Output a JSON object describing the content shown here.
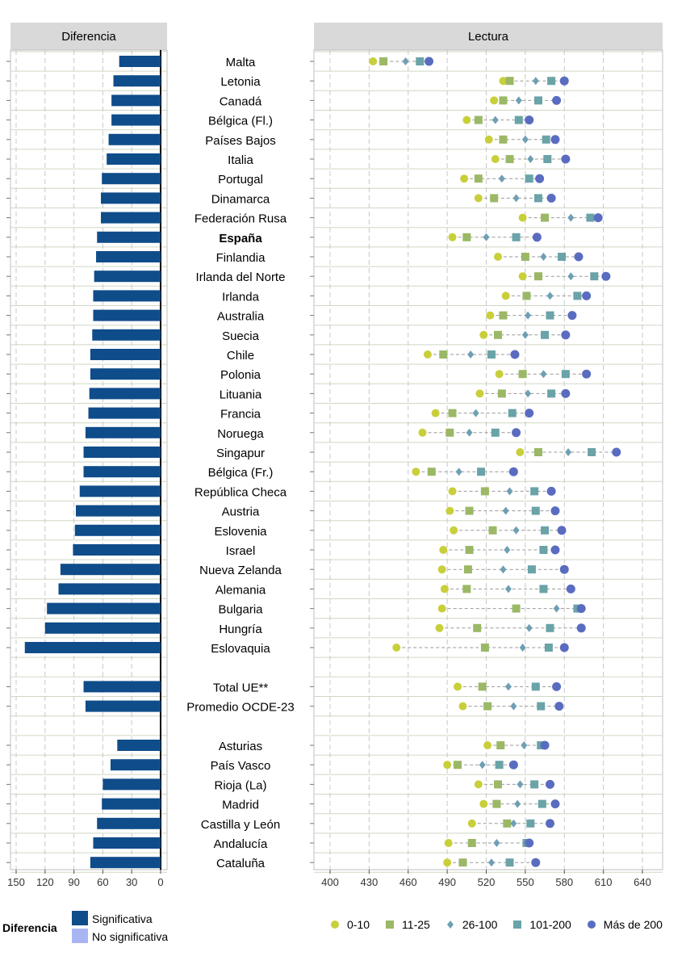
{
  "panels": {
    "left_title": "Diferencia",
    "right_title": "Lectura"
  },
  "colors": {
    "bar_significant": "#0f4c8a",
    "bar_not_significant": "#a9b4f2",
    "g1": "#c8cf3a",
    "g2": "#9bb866",
    "g3": "#6f9fb4",
    "g4": "#6aa3a8",
    "g5": "#5a6cc0"
  },
  "legend_left": {
    "title": "Diferencia",
    "significant": "Significativa",
    "not_significant": "No significativa"
  },
  "legend_right": [
    {
      "label": "0-10",
      "shape": "circle",
      "color": "#c8cf3a"
    },
    {
      "label": "11-25",
      "shape": "square",
      "color": "#9bb866"
    },
    {
      "label": "26-100",
      "shape": "diamond",
      "color": "#6f9fb4"
    },
    {
      "label": "101-200",
      "shape": "square",
      "color": "#6aa3a8"
    },
    {
      "label": "Más de 200",
      "shape": "circle",
      "color": "#5a6cc0"
    }
  ],
  "chart_data": [
    {
      "type": "bar",
      "orientation": "horizontal",
      "title": "Diferencia",
      "xlim": [
        157,
        0
      ],
      "xticks": [
        "150",
        "120",
        "90",
        "60",
        "30",
        "0"
      ],
      "grid": true,
      "categories": [
        "Malta",
        "Letonia",
        "Canadá",
        "Bélgica (Fl.)",
        "Países Bajos",
        "Italia",
        "Portugal",
        "Dinamarca",
        "Federación Rusa",
        "España",
        "Finlandia",
        "Irlanda del Norte",
        "Irlanda",
        "Australia",
        "Suecia",
        "Chile",
        "Polonia",
        "Lituania",
        "Francia",
        "Noruega",
        "Singapur",
        "Bélgica (Fr.)",
        "República Checa",
        "Austria",
        "Eslovenia",
        "Israel",
        "Nueva Zelanda",
        "Alemania",
        "Bulgaria",
        "Hungría",
        "Eslovaquia",
        "Total UE**",
        "Promedio OCDE-23",
        "Asturias",
        "País Vasco",
        "Rioja (La)",
        "Madrid",
        "Castilla y León",
        "Andalucía",
        "Cataluña"
      ],
      "values": [
        43,
        49,
        51,
        51,
        54,
        56,
        61,
        62,
        62,
        66,
        67,
        69,
        70,
        70,
        71,
        73,
        73,
        74,
        75,
        78,
        80,
        80,
        84,
        88,
        89,
        91,
        104,
        106,
        118,
        120,
        141,
        80,
        78,
        45,
        52,
        60,
        61,
        66,
        70,
        73
      ],
      "significant": [
        true,
        true,
        true,
        true,
        true,
        true,
        true,
        true,
        true,
        true,
        true,
        true,
        true,
        true,
        true,
        true,
        true,
        true,
        true,
        true,
        true,
        true,
        true,
        true,
        true,
        true,
        true,
        true,
        true,
        true,
        true,
        true,
        true,
        true,
        true,
        true,
        true,
        true,
        true,
        true
      ]
    },
    {
      "type": "scatter",
      "title": "Lectura",
      "xlim": [
        393,
        645
      ],
      "xticks": [
        "400",
        "430",
        "460",
        "490",
        "520",
        "550",
        "580",
        "610",
        "640"
      ],
      "grid": true,
      "series_names": [
        "0-10",
        "11-25",
        "26-100",
        "101-200",
        "Más de 200"
      ],
      "rows": [
        {
          "name": "Malta",
          "bold": false,
          "values": [
            433,
            441,
            458,
            469,
            476
          ]
        },
        {
          "name": "Letonia",
          "bold": false,
          "values": [
            533,
            538,
            558,
            570,
            580
          ]
        },
        {
          "name": "Canadá",
          "bold": false,
          "values": [
            526,
            533,
            545,
            560,
            574
          ]
        },
        {
          "name": "Bélgica (Fl.)",
          "bold": false,
          "values": [
            505,
            514,
            527,
            545,
            553
          ]
        },
        {
          "name": "Países Bajos",
          "bold": false,
          "values": [
            522,
            533,
            550,
            566,
            573
          ]
        },
        {
          "name": "Italia",
          "bold": false,
          "values": [
            527,
            538,
            554,
            567,
            581
          ]
        },
        {
          "name": "Portugal",
          "bold": false,
          "values": [
            503,
            514,
            532,
            553,
            561
          ]
        },
        {
          "name": "Dinamarca",
          "bold": false,
          "values": [
            514,
            526,
            543,
            560,
            570
          ]
        },
        {
          "name": "Federación Rusa",
          "bold": false,
          "values": [
            548,
            565,
            585,
            600,
            606
          ]
        },
        {
          "name": "España",
          "bold": true,
          "values": [
            494,
            505,
            520,
            543,
            559
          ]
        },
        {
          "name": "Finlandia",
          "bold": false,
          "values": [
            529,
            550,
            564,
            578,
            591
          ]
        },
        {
          "name": "Irlanda del Norte",
          "bold": false,
          "values": [
            548,
            560,
            585,
            603,
            612
          ]
        },
        {
          "name": "Irlanda",
          "bold": false,
          "values": [
            535,
            551,
            569,
            590,
            597
          ]
        },
        {
          "name": "Australia",
          "bold": false,
          "values": [
            523,
            533,
            552,
            569,
            586
          ]
        },
        {
          "name": "Suecia",
          "bold": false,
          "values": [
            518,
            529,
            550,
            565,
            581
          ]
        },
        {
          "name": "Chile",
          "bold": false,
          "values": [
            475,
            487,
            508,
            524,
            542
          ]
        },
        {
          "name": "Polonia",
          "bold": false,
          "values": [
            530,
            548,
            564,
            581,
            597
          ]
        },
        {
          "name": "Lituania",
          "bold": false,
          "values": [
            515,
            532,
            552,
            570,
            581
          ]
        },
        {
          "name": "Francia",
          "bold": false,
          "values": [
            481,
            494,
            512,
            540,
            553
          ]
        },
        {
          "name": "Noruega",
          "bold": false,
          "values": [
            471,
            492,
            507,
            527,
            543
          ]
        },
        {
          "name": "Singapur",
          "bold": false,
          "values": [
            546,
            560,
            583,
            601,
            620
          ]
        },
        {
          "name": "Bélgica (Fr.)",
          "bold": false,
          "values": [
            466,
            478,
            499,
            516,
            541
          ]
        },
        {
          "name": "República Checa",
          "bold": false,
          "values": [
            494,
            519,
            538,
            557,
            570
          ]
        },
        {
          "name": "Austria",
          "bold": false,
          "values": [
            492,
            507,
            535,
            558,
            573
          ]
        },
        {
          "name": "Eslovenia",
          "bold": false,
          "values": [
            495,
            525,
            543,
            565,
            578
          ]
        },
        {
          "name": "Israel",
          "bold": false,
          "values": [
            487,
            507,
            536,
            564,
            573
          ]
        },
        {
          "name": "Nueva Zelanda",
          "bold": false,
          "values": [
            486,
            506,
            533,
            555,
            580
          ]
        },
        {
          "name": "Alemania",
          "bold": false,
          "values": [
            488,
            505,
            537,
            564,
            585
          ]
        },
        {
          "name": "Bulgaria",
          "bold": false,
          "values": [
            486,
            543,
            574,
            590,
            593
          ]
        },
        {
          "name": "Hungría",
          "bold": false,
          "values": [
            484,
            513,
            553,
            569,
            593
          ]
        },
        {
          "name": "Eslovaquia",
          "bold": false,
          "values": [
            451,
            519,
            548,
            568,
            580
          ]
        },
        {
          "name": "Total UE**",
          "bold": false,
          "values": [
            498,
            517,
            537,
            558,
            574
          ]
        },
        {
          "name": "Promedio OCDE-23",
          "bold": false,
          "values": [
            502,
            521,
            541,
            562,
            576
          ]
        },
        {
          "name": "Asturias",
          "bold": false,
          "values": [
            521,
            531,
            549,
            562,
            565
          ]
        },
        {
          "name": "País Vasco",
          "bold": false,
          "values": [
            490,
            498,
            517,
            530,
            541
          ]
        },
        {
          "name": "Rioja (La)",
          "bold": false,
          "values": [
            514,
            529,
            546,
            557,
            569
          ]
        },
        {
          "name": "Madrid",
          "bold": false,
          "values": [
            518,
            528,
            544,
            563,
            573
          ]
        },
        {
          "name": "Castilla y León",
          "bold": false,
          "values": [
            509,
            536,
            541,
            554,
            569
          ]
        },
        {
          "name": "Andalucía",
          "bold": false,
          "values": [
            491,
            509,
            528,
            551,
            553
          ]
        },
        {
          "name": "Cataluña",
          "bold": false,
          "values": [
            490,
            502,
            524,
            538,
            558
          ]
        }
      ]
    }
  ]
}
